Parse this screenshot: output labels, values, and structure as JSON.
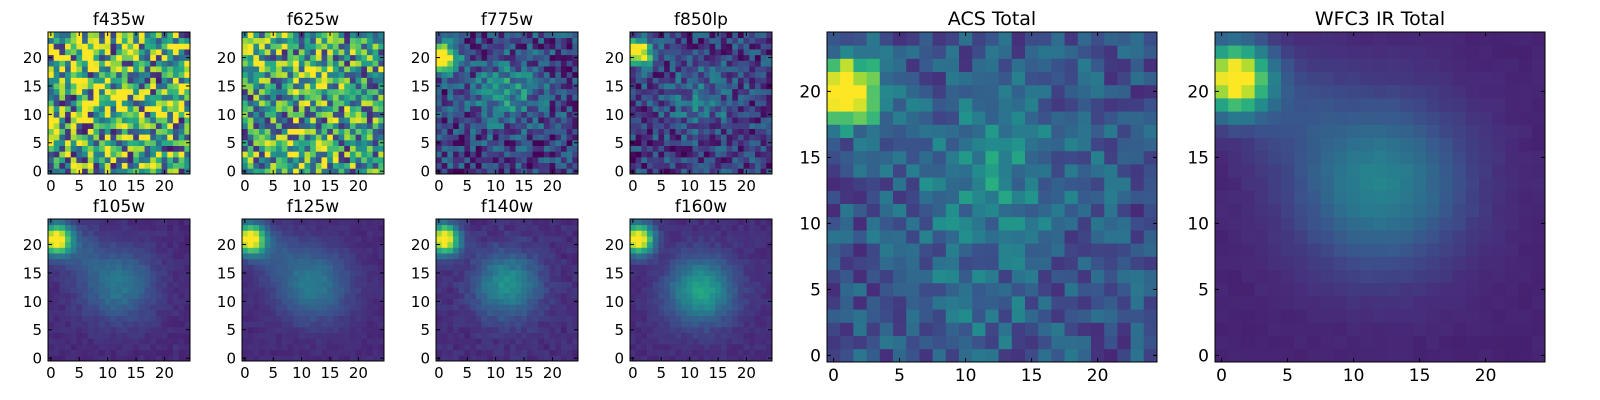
{
  "chart_data": [
    {
      "type": "heatmap",
      "title": "f435w",
      "grid": false,
      "xlim": [
        0,
        25
      ],
      "ylim": [
        0,
        25
      ],
      "xticks": [
        "0",
        "5",
        "10",
        "15",
        "20"
      ],
      "yticks": [
        "0",
        "5",
        "10",
        "15",
        "20"
      ],
      "xlabel": "",
      "ylabel": "",
      "colormap": "viridis",
      "grid_size": [
        25,
        25
      ],
      "seed": 11,
      "noise": 0.55,
      "background": 0.62,
      "features": [
        {
          "x": 12,
          "y": 14,
          "amp": 0.18,
          "sigma": 3.0
        }
      ]
    },
    {
      "type": "heatmap",
      "title": "f625w",
      "grid": false,
      "xlim": [
        0,
        25
      ],
      "ylim": [
        0,
        25
      ],
      "xticks": [
        "0",
        "5",
        "10",
        "15",
        "20"
      ],
      "yticks": [
        "0",
        "5",
        "10",
        "15",
        "20"
      ],
      "xlabel": "",
      "ylabel": "",
      "colormap": "viridis",
      "grid_size": [
        25,
        25
      ],
      "seed": 23,
      "noise": 0.45,
      "background": 0.55,
      "features": [
        {
          "x": 12,
          "y": 16,
          "amp": 0.25,
          "sigma": 3.0
        },
        {
          "x": 10,
          "y": 2,
          "amp": 0.2,
          "sigma": 3.0
        },
        {
          "x": 1,
          "y": 21,
          "amp": 0.25,
          "sigma": 2.0
        }
      ]
    },
    {
      "type": "heatmap",
      "title": "f775w",
      "grid": false,
      "xlim": [
        0,
        25
      ],
      "ylim": [
        0,
        25
      ],
      "xticks": [
        "0",
        "5",
        "10",
        "15",
        "20"
      ],
      "yticks": [
        "0",
        "5",
        "10",
        "15",
        "20"
      ],
      "xlabel": "",
      "ylabel": "",
      "colormap": "viridis",
      "grid_size": [
        25,
        25
      ],
      "seed": 37,
      "noise": 0.22,
      "background": 0.2,
      "features": [
        {
          "x": 12,
          "y": 14,
          "amp": 0.3,
          "sigma": 4.0
        },
        {
          "x": 1,
          "y": 20,
          "amp": 1.0,
          "sigma": 1.6
        }
      ]
    },
    {
      "type": "heatmap",
      "title": "f850lp",
      "grid": false,
      "xlim": [
        0,
        25
      ],
      "ylim": [
        0,
        25
      ],
      "xticks": [
        "0",
        "5",
        "10",
        "15",
        "20"
      ],
      "yticks": [
        "0",
        "5",
        "10",
        "15",
        "20"
      ],
      "xlabel": "",
      "ylabel": "",
      "colormap": "viridis",
      "grid_size": [
        25,
        25
      ],
      "seed": 41,
      "noise": 0.2,
      "background": 0.18,
      "features": [
        {
          "x": 12,
          "y": 13,
          "amp": 0.2,
          "sigma": 4.0
        },
        {
          "x": 1,
          "y": 21,
          "amp": 1.0,
          "sigma": 1.6
        }
      ]
    },
    {
      "type": "heatmap",
      "title": "f105w",
      "grid": false,
      "xlim": [
        0,
        25
      ],
      "ylim": [
        0,
        25
      ],
      "xticks": [
        "0",
        "5",
        "10",
        "15",
        "20"
      ],
      "yticks": [
        "0",
        "5",
        "10",
        "15",
        "20"
      ],
      "xlabel": "",
      "ylabel": "",
      "colormap": "viridis",
      "grid_size": [
        25,
        25
      ],
      "seed": 53,
      "noise": 0.03,
      "background": 0.12,
      "features": [
        {
          "x": 12,
          "y": 13,
          "amp": 0.28,
          "sigma": 4.5
        },
        {
          "x": 1,
          "y": 21,
          "amp": 1.0,
          "sigma": 1.8
        },
        {
          "x": 5,
          "y": 19,
          "amp": 0.12,
          "sigma": 3.0
        }
      ]
    },
    {
      "type": "heatmap",
      "title": "f125w",
      "grid": false,
      "xlim": [
        0,
        25
      ],
      "ylim": [
        0,
        25
      ],
      "xticks": [
        "0",
        "5",
        "10",
        "15",
        "20"
      ],
      "yticks": [
        "0",
        "5",
        "10",
        "15",
        "20"
      ],
      "xlabel": "",
      "ylabel": "",
      "colormap": "viridis",
      "grid_size": [
        25,
        25
      ],
      "seed": 59,
      "noise": 0.025,
      "background": 0.12,
      "features": [
        {
          "x": 12,
          "y": 13,
          "amp": 0.3,
          "sigma": 4.5
        },
        {
          "x": 1,
          "y": 21,
          "amp": 1.0,
          "sigma": 1.8
        },
        {
          "x": 5,
          "y": 19,
          "amp": 0.12,
          "sigma": 3.0
        }
      ]
    },
    {
      "type": "heatmap",
      "title": "f140w",
      "grid": false,
      "xlim": [
        0,
        25
      ],
      "ylim": [
        0,
        25
      ],
      "xticks": [
        "0",
        "5",
        "10",
        "15",
        "20"
      ],
      "yticks": [
        "0",
        "5",
        "10",
        "15",
        "20"
      ],
      "xlabel": "",
      "ylabel": "",
      "colormap": "viridis",
      "grid_size": [
        25,
        25
      ],
      "seed": 61,
      "noise": 0.04,
      "background": 0.13,
      "features": [
        {
          "x": 12,
          "y": 13,
          "amp": 0.38,
          "sigma": 4.0
        },
        {
          "x": 1,
          "y": 21,
          "amp": 1.0,
          "sigma": 1.8
        }
      ]
    },
    {
      "type": "heatmap",
      "title": "f160w",
      "grid": false,
      "xlim": [
        0,
        25
      ],
      "ylim": [
        0,
        25
      ],
      "xticks": [
        "0",
        "5",
        "10",
        "15",
        "20"
      ],
      "yticks": [
        "0",
        "5",
        "10",
        "15",
        "20"
      ],
      "xlabel": "",
      "ylabel": "",
      "colormap": "viridis",
      "grid_size": [
        25,
        25
      ],
      "seed": 67,
      "noise": 0.03,
      "background": 0.13,
      "features": [
        {
          "x": 12,
          "y": 12,
          "amp": 0.45,
          "sigma": 4.0
        },
        {
          "x": 1,
          "y": 21,
          "amp": 1.0,
          "sigma": 1.8
        }
      ]
    },
    {
      "type": "heatmap",
      "title": "ACS Total",
      "grid": false,
      "xlim": [
        0,
        25
      ],
      "ylim": [
        0,
        25
      ],
      "xticks": [
        "0",
        "5",
        "10",
        "15",
        "20"
      ],
      "yticks": [
        "0",
        "5",
        "10",
        "15",
        "20"
      ],
      "xlabel": "",
      "ylabel": "",
      "colormap": "viridis",
      "grid_size": [
        25,
        25
      ],
      "seed": 79,
      "noise": 0.15,
      "background": 0.26,
      "features": [
        {
          "x": 12,
          "y": 14,
          "amp": 0.22,
          "sigma": 4.0
        },
        {
          "x": 10,
          "y": 4,
          "amp": 0.08,
          "sigma": 4.0
        },
        {
          "x": 1,
          "y": 20,
          "amp": 1.0,
          "sigma": 1.7
        }
      ]
    },
    {
      "type": "heatmap",
      "title": "WFC3 IR Total",
      "grid": false,
      "xlim": [
        0,
        25
      ],
      "ylim": [
        0,
        25
      ],
      "xticks": [
        "0",
        "5",
        "10",
        "15",
        "20"
      ],
      "yticks": [
        "0",
        "5",
        "10",
        "15",
        "20"
      ],
      "xlabel": "",
      "ylabel": "",
      "colormap": "viridis",
      "grid_size": [
        25,
        25
      ],
      "seed": 83,
      "noise": 0.01,
      "background": 0.1,
      "features": [
        {
          "x": 12,
          "y": 13,
          "amp": 0.35,
          "sigma": 4.5
        },
        {
          "x": 1,
          "y": 21,
          "amp": 1.0,
          "sigma": 1.8
        },
        {
          "x": 5,
          "y": 19,
          "amp": 0.1,
          "sigma": 3.0
        }
      ]
    }
  ]
}
